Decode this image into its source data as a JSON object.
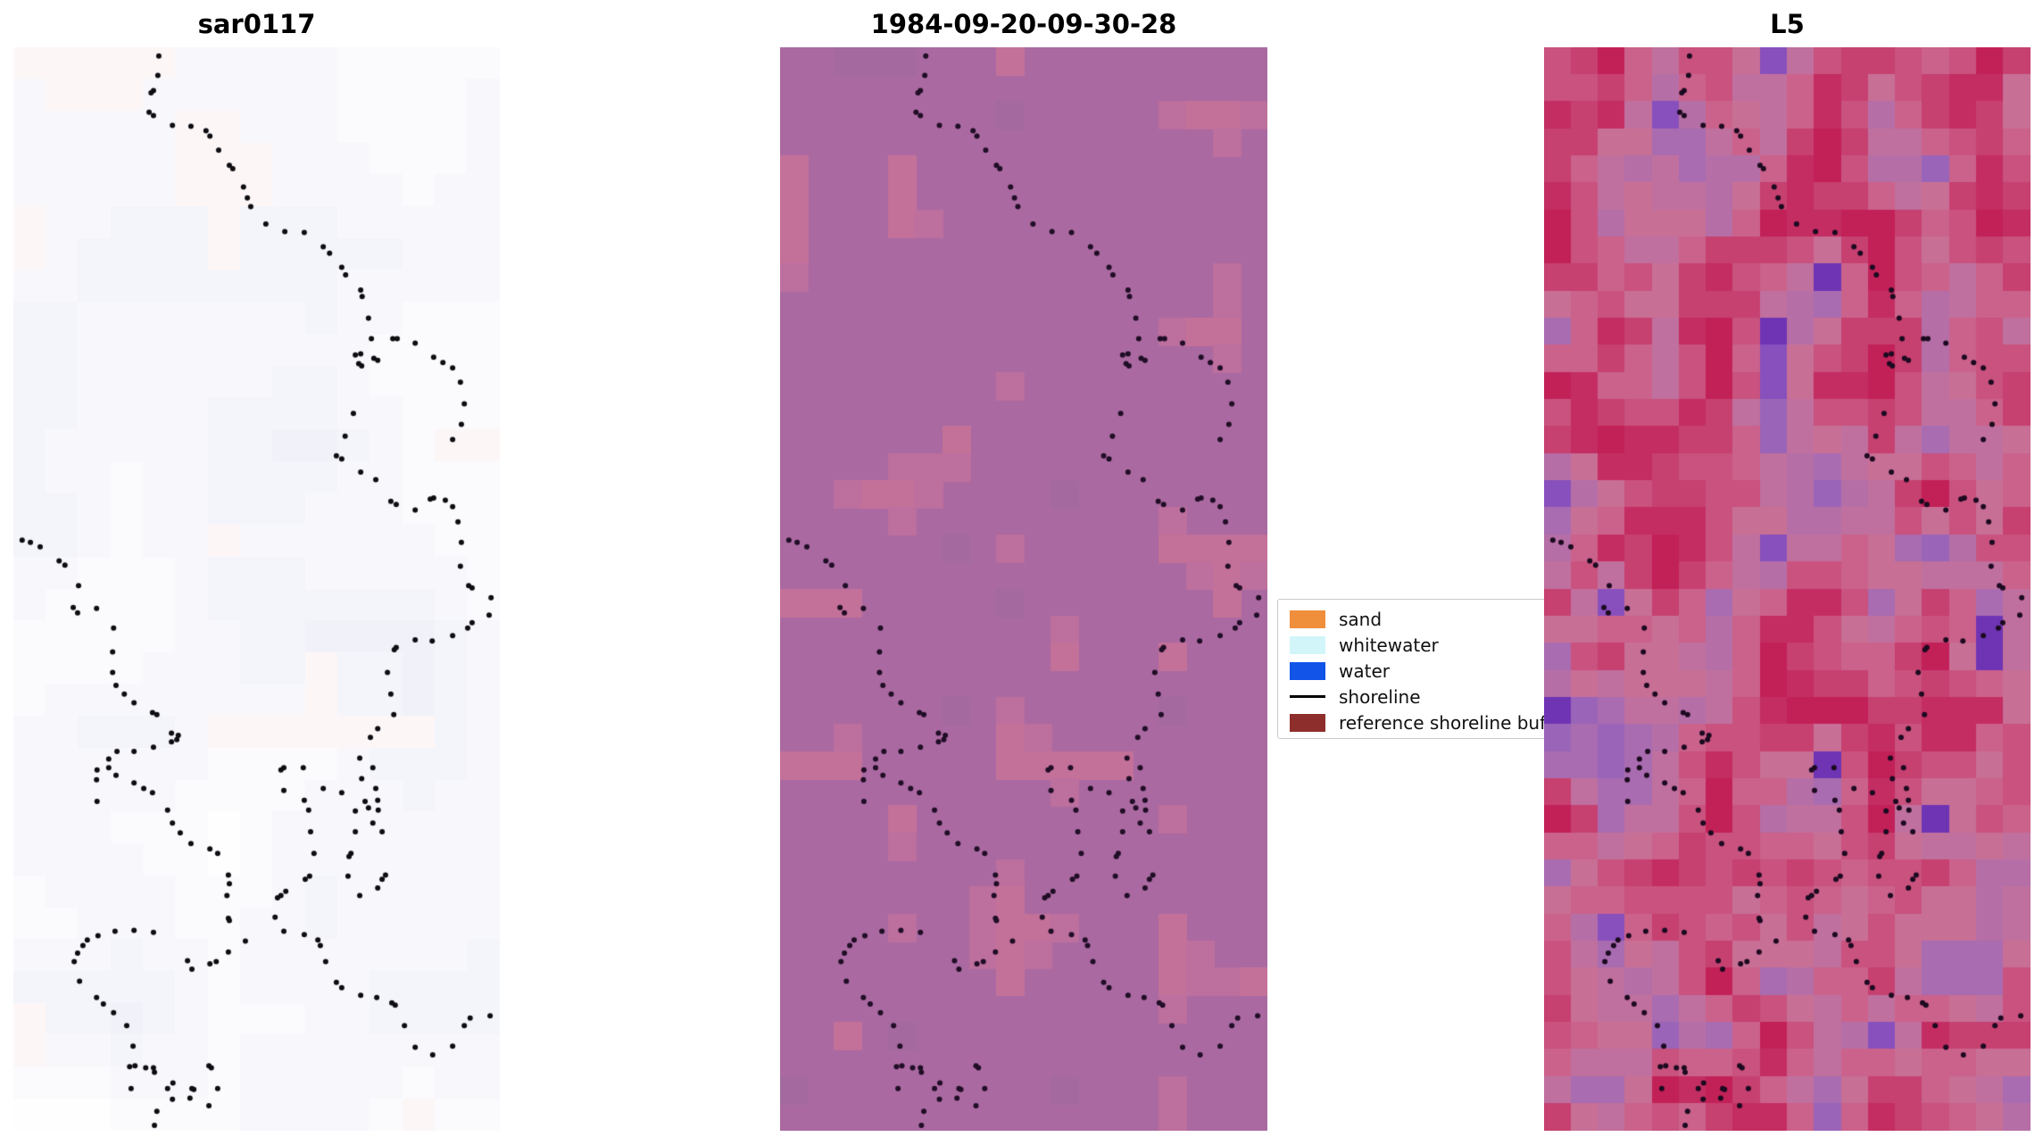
{
  "figure": {
    "background": "#ffffff"
  },
  "chart_data": {
    "type": "heatmap",
    "layout": "three vertical image panels compared side by side, each overlaid with the same dotted shoreline scatter; legend box sits between panel 2 and panel 3 and is partially covered by panel 3",
    "panels": [
      {
        "title": "sar0117",
        "kind": "image",
        "appearance": "near-white SAR image with very faint pale-lavender / pale-pink rectangular blocks",
        "base_color": "#fcfbfe",
        "tint_low": "#f1f2f9",
        "tint_high": "#fefeff",
        "pink_tint": "#fdf6f7",
        "dot_color": "#0e0e12"
      },
      {
        "title": "1984-09-20-09-30-28",
        "kind": "image",
        "appearance": "flat mauve classified image with lighter pink rectangular patches",
        "base_color": "#aa6aa1",
        "patch_color_1": "#bd6f9e",
        "patch_color_2": "#c4719a",
        "patch_color_dark": "#a46a9f",
        "dot_color": "#200d26"
      },
      {
        "title": "L5",
        "kind": "image",
        "appearance": "coarse pixelated Landsat-5 false-colour image, crimson/pink/mauve with violet blobs",
        "grid": {
          "cols": 18,
          "rows": 40
        },
        "palette": [
          "#6e34b4",
          "#8850bd",
          "#9a64b8",
          "#a96cb0",
          "#b56fa6",
          "#c0709e",
          "#c86f96",
          "#cb628b",
          "#c9527e",
          "#c64070",
          "#c32d62",
          "#c22158"
        ],
        "dot_color": "#1c0a20"
      }
    ],
    "legend": {
      "position": "between middle and right panels, clipped on the right by the L5 panel",
      "items": [
        {
          "label": "sand",
          "color": "#ef8e3b",
          "swatch": "patch"
        },
        {
          "label": "whitewater",
          "color": "#d2f5f9",
          "swatch": "patch"
        },
        {
          "label": "water",
          "color": "#1253e8",
          "swatch": "patch"
        },
        {
          "label": "shoreline",
          "color": "#000000",
          "swatch": "line"
        },
        {
          "label": "reference shoreline buffer",
          "color": "#8e2e2c",
          "swatch": "patch"
        }
      ]
    },
    "shoreline": {
      "marker": "point",
      "marker_diameter_px": 6,
      "coordinates": "normalized x,y within each panel (0-1), identical overlay on all three panels",
      "points": [
        [
          0.299,
          0.008
        ],
        [
          0.297,
          0.026
        ],
        [
          0.288,
          0.04
        ],
        [
          0.283,
          0.042
        ],
        [
          0.279,
          0.06
        ],
        [
          0.288,
          0.063
        ],
        [
          0.327,
          0.072
        ],
        [
          0.365,
          0.073
        ],
        [
          0.396,
          0.077
        ],
        [
          0.404,
          0.082
        ],
        [
          0.422,
          0.095
        ],
        [
          0.444,
          0.109
        ],
        [
          0.451,
          0.112
        ],
        [
          0.473,
          0.129
        ],
        [
          0.481,
          0.139
        ],
        [
          0.488,
          0.147
        ],
        [
          0.519,
          0.163
        ],
        [
          0.558,
          0.17
        ],
        [
          0.598,
          0.171
        ],
        [
          0.637,
          0.184
        ],
        [
          0.65,
          0.19
        ],
        [
          0.675,
          0.203
        ],
        [
          0.683,
          0.21
        ],
        [
          0.714,
          0.224
        ],
        [
          0.717,
          0.23
        ],
        [
          0.73,
          0.25
        ],
        [
          0.736,
          0.269
        ],
        [
          0.78,
          0.269
        ],
        [
          0.789,
          0.269
        ],
        [
          0.826,
          0.273
        ],
        [
          0.703,
          0.284
        ],
        [
          0.714,
          0.283
        ],
        [
          0.71,
          0.292
        ],
        [
          0.716,
          0.294
        ],
        [
          0.741,
          0.287
        ],
        [
          0.749,
          0.289
        ],
        [
          0.864,
          0.286
        ],
        [
          0.883,
          0.291
        ],
        [
          0.903,
          0.296
        ],
        [
          0.919,
          0.309
        ],
        [
          0.927,
          0.329
        ],
        [
          0.921,
          0.348
        ],
        [
          0.903,
          0.362
        ],
        [
          0.699,
          0.338
        ],
        [
          0.682,
          0.359
        ],
        [
          0.664,
          0.377
        ],
        [
          0.675,
          0.38
        ],
        [
          0.714,
          0.392
        ],
        [
          0.745,
          0.399
        ],
        [
          0.776,
          0.419
        ],
        [
          0.787,
          0.422
        ],
        [
          0.826,
          0.427
        ],
        [
          0.857,
          0.417
        ],
        [
          0.864,
          0.416
        ],
        [
          0.888,
          0.418
        ],
        [
          0.903,
          0.424
        ],
        [
          0.914,
          0.438
        ],
        [
          0.921,
          0.457
        ],
        [
          0.919,
          0.479
        ],
        [
          0.936,
          0.497
        ],
        [
          0.943,
          0.499
        ],
        [
          0.982,
          0.508
        ],
        [
          0.978,
          0.524
        ],
        [
          0.943,
          0.531
        ],
        [
          0.934,
          0.536
        ],
        [
          0.903,
          0.543
        ],
        [
          0.861,
          0.548
        ],
        [
          0.826,
          0.547
        ],
        [
          0.787,
          0.554
        ],
        [
          0.783,
          0.556
        ],
        [
          0.769,
          0.577
        ],
        [
          0.776,
          0.597
        ],
        [
          0.782,
          0.616
        ],
        [
          0.749,
          0.629
        ],
        [
          0.734,
          0.637
        ],
        [
          0.712,
          0.656
        ],
        [
          0.716,
          0.675
        ],
        [
          0.723,
          0.696
        ],
        [
          0.73,
          0.702
        ],
        [
          0.739,
          0.716
        ],
        [
          0.018,
          0.455
        ],
        [
          0.035,
          0.457
        ],
        [
          0.055,
          0.461
        ],
        [
          0.094,
          0.474
        ],
        [
          0.106,
          0.478
        ],
        [
          0.134,
          0.497
        ],
        [
          0.123,
          0.517
        ],
        [
          0.132,
          0.522
        ],
        [
          0.171,
          0.518
        ],
        [
          0.206,
          0.536
        ],
        [
          0.204,
          0.558
        ],
        [
          0.204,
          0.577
        ],
        [
          0.211,
          0.589
        ],
        [
          0.228,
          0.597
        ],
        [
          0.248,
          0.605
        ],
        [
          0.286,
          0.614
        ],
        [
          0.295,
          0.616
        ],
        [
          0.325,
          0.633
        ],
        [
          0.339,
          0.635
        ],
        [
          0.336,
          0.639
        ],
        [
          0.325,
          0.641
        ],
        [
          0.288,
          0.646
        ],
        [
          0.248,
          0.65
        ],
        [
          0.213,
          0.65
        ],
        [
          0.196,
          0.657
        ],
        [
          0.172,
          0.667
        ],
        [
          0.171,
          0.676
        ],
        [
          0.172,
          0.696
        ],
        [
          0.196,
          0.665
        ],
        [
          0.211,
          0.672
        ],
        [
          0.248,
          0.679
        ],
        [
          0.268,
          0.684
        ],
        [
          0.286,
          0.688
        ],
        [
          0.317,
          0.704
        ],
        [
          0.327,
          0.716
        ],
        [
          0.343,
          0.725
        ],
        [
          0.365,
          0.735
        ],
        [
          0.404,
          0.74
        ],
        [
          0.42,
          0.744
        ],
        [
          0.442,
          0.764
        ],
        [
          0.444,
          0.772
        ],
        [
          0.439,
          0.783
        ],
        [
          0.442,
          0.804
        ],
        [
          0.444,
          0.806
        ],
        [
          0.288,
          0.817
        ],
        [
          0.248,
          0.815
        ],
        [
          0.209,
          0.816
        ],
        [
          0.174,
          0.82
        ],
        [
          0.152,
          0.824
        ],
        [
          0.143,
          0.829
        ],
        [
          0.132,
          0.836
        ],
        [
          0.125,
          0.844
        ],
        [
          0.136,
          0.862
        ],
        [
          0.171,
          0.877
        ],
        [
          0.185,
          0.883
        ],
        [
          0.206,
          0.891
        ],
        [
          0.233,
          0.903
        ],
        [
          0.246,
          0.922
        ],
        [
          0.239,
          0.941
        ],
        [
          0.242,
          0.961
        ],
        [
          0.317,
          0.961
        ],
        [
          0.328,
          0.956
        ],
        [
          0.367,
          0.961
        ],
        [
          0.371,
          0.962
        ],
        [
          0.358,
          0.843
        ],
        [
          0.367,
          0.851
        ],
        [
          0.404,
          0.846
        ],
        [
          0.417,
          0.844
        ],
        [
          0.442,
          0.835
        ],
        [
          0.477,
          0.825
        ],
        [
          0.538,
          0.803
        ],
        [
          0.556,
          0.816
        ],
        [
          0.598,
          0.819
        ],
        [
          0.626,
          0.824
        ],
        [
          0.631,
          0.829
        ],
        [
          0.642,
          0.844
        ],
        [
          0.664,
          0.863
        ],
        [
          0.675,
          0.868
        ],
        [
          0.714,
          0.875
        ],
        [
          0.747,
          0.877
        ],
        [
          0.778,
          0.882
        ],
        [
          0.785,
          0.884
        ],
        [
          0.804,
          0.903
        ],
        [
          0.826,
          0.923
        ],
        [
          0.862,
          0.93
        ],
        [
          0.903,
          0.922
        ],
        [
          0.927,
          0.903
        ],
        [
          0.939,
          0.896
        ],
        [
          0.98,
          0.894
        ],
        [
          0.55,
          0.667
        ],
        [
          0.556,
          0.665
        ],
        [
          0.596,
          0.665
        ],
        [
          0.556,
          0.686
        ],
        [
          0.598,
          0.695
        ],
        [
          0.607,
          0.704
        ],
        [
          0.637,
          0.684
        ],
        [
          0.675,
          0.688
        ],
        [
          0.611,
          0.724
        ],
        [
          0.618,
          0.744
        ],
        [
          0.609,
          0.765
        ],
        [
          0.6,
          0.768
        ],
        [
          0.543,
          0.785
        ],
        [
          0.55,
          0.783
        ],
        [
          0.56,
          0.779
        ],
        [
          0.739,
          0.665
        ],
        [
          0.745,
          0.684
        ],
        [
          0.749,
          0.695
        ],
        [
          0.75,
          0.704
        ],
        [
          0.703,
          0.705
        ],
        [
          0.703,
          0.724
        ],
        [
          0.758,
          0.724
        ],
        [
          0.694,
          0.744
        ],
        [
          0.69,
          0.747
        ],
        [
          0.688,
          0.765
        ],
        [
          0.765,
          0.764
        ],
        [
          0.758,
          0.768
        ],
        [
          0.749,
          0.776
        ],
        [
          0.712,
          0.783
        ],
        [
          0.25,
          0.94
        ],
        [
          0.272,
          0.942
        ],
        [
          0.288,
          0.942
        ],
        [
          0.29,
          0.946
        ],
        [
          0.402,
          0.94
        ],
        [
          0.407,
          0.942
        ],
        [
          0.42,
          0.961
        ],
        [
          0.327,
          0.971
        ],
        [
          0.363,
          0.97
        ],
        [
          0.402,
          0.977
        ],
        [
          0.295,
          0.982
        ],
        [
          0.29,
          0.995
        ]
      ]
    }
  }
}
